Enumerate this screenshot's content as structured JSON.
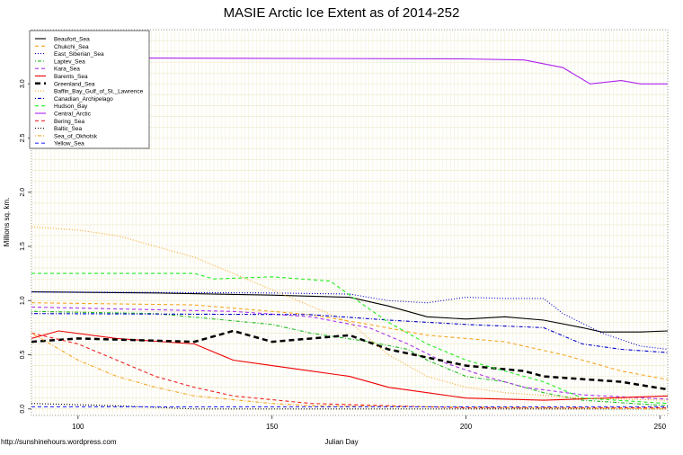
{
  "chart_data": {
    "type": "line",
    "title": "MASIE Arctic Ice Extent as of 2014-252",
    "xlabel": "Julian Day",
    "ylabel": "Millions sq. km.",
    "credit": "http://sunshinehours.wordpress.com",
    "xlim": [
      88,
      252
    ],
    "ylim": [
      -0.06,
      3.5
    ],
    "xticks": [
      100,
      150,
      200,
      250
    ],
    "yticks": [
      0.0,
      0.5,
      1.0,
      1.5,
      2.0,
      2.5,
      3.0
    ],
    "grid": true,
    "legend_position": "top-left",
    "series": [
      {
        "name": "Beaufort_Sea",
        "color": "#000000",
        "dash": "solid",
        "x": [
          88,
          120,
          150,
          170,
          180,
          190,
          200,
          210,
          220,
          230,
          235,
          245,
          252
        ],
        "y": [
          1.08,
          1.07,
          1.05,
          1.03,
          0.95,
          0.85,
          0.83,
          0.85,
          0.82,
          0.75,
          0.71,
          0.71,
          0.72
        ]
      },
      {
        "name": "Chukchi_Sea",
        "color": "#f5a623",
        "dash": "dashed",
        "x": [
          88,
          130,
          160,
          175,
          190,
          200,
          210,
          225,
          240,
          252
        ],
        "y": [
          0.98,
          0.96,
          0.87,
          0.78,
          0.68,
          0.65,
          0.62,
          0.5,
          0.35,
          0.27
        ]
      },
      {
        "name": "East_Siberian_Sea",
        "color": "#0000cc",
        "dash": "dotted",
        "x": [
          88,
          150,
          170,
          180,
          190,
          200,
          210,
          220,
          225,
          235,
          245,
          252
        ],
        "y": [
          1.08,
          1.07,
          1.06,
          1.0,
          0.98,
          1.03,
          1.02,
          1.02,
          0.88,
          0.7,
          0.58,
          0.55
        ]
      },
      {
        "name": "Laptev_Sea",
        "color": "#22bb22",
        "dash": "dotdash",
        "x": [
          88,
          120,
          150,
          160,
          175,
          185,
          190,
          200,
          210,
          220,
          230,
          252
        ],
        "y": [
          0.9,
          0.88,
          0.78,
          0.7,
          0.62,
          0.55,
          0.45,
          0.3,
          0.25,
          0.15,
          0.08,
          0.03
        ]
      },
      {
        "name": "Kara_Sea",
        "color": "#aa33ee",
        "dash": "dashed",
        "x": [
          88,
          140,
          160,
          175,
          185,
          195,
          205,
          215,
          230,
          252
        ],
        "y": [
          0.94,
          0.9,
          0.85,
          0.75,
          0.6,
          0.42,
          0.3,
          0.2,
          0.13,
          0.09
        ]
      },
      {
        "name": "Barents_Sea",
        "color": "#ee0000",
        "dash": "solid",
        "x": [
          88,
          95,
          110,
          130,
          140,
          150,
          160,
          170,
          180,
          190,
          200,
          220,
          252
        ],
        "y": [
          0.65,
          0.72,
          0.65,
          0.6,
          0.45,
          0.4,
          0.35,
          0.3,
          0.2,
          0.15,
          0.1,
          0.08,
          0.12
        ]
      },
      {
        "name": "Greenland_Sea",
        "color": "#000000",
        "dash": "thickdash",
        "x": [
          88,
          100,
          130,
          140,
          150,
          170,
          180,
          200,
          215,
          220,
          240,
          252
        ],
        "y": [
          0.62,
          0.65,
          0.62,
          0.72,
          0.62,
          0.68,
          0.55,
          0.4,
          0.35,
          0.3,
          0.25,
          0.18
        ]
      },
      {
        "name": "Baffin_Bay_Gulf_of_St._Lawrence",
        "color": "#f5a623",
        "dash": "dotted",
        "x": [
          88,
          100,
          110,
          120,
          130,
          140,
          150,
          160,
          170,
          180,
          190,
          200,
          210,
          230,
          252
        ],
        "y": [
          1.68,
          1.65,
          1.6,
          1.5,
          1.4,
          1.25,
          1.1,
          0.95,
          0.8,
          0.5,
          0.3,
          0.2,
          0.15,
          0.1,
          0.08
        ]
      },
      {
        "name": "Canadian_Archipelago",
        "color": "#0000cc",
        "dash": "dotdash",
        "x": [
          88,
          160,
          180,
          200,
          220,
          230,
          240,
          252
        ],
        "y": [
          0.88,
          0.87,
          0.82,
          0.78,
          0.75,
          0.6,
          0.55,
          0.52
        ]
      },
      {
        "name": "Hudson_Bay",
        "color": "#22ee22",
        "dash": "dashed",
        "x": [
          88,
          130,
          135,
          150,
          165,
          172,
          180,
          190,
          200,
          210,
          220,
          230,
          252
        ],
        "y": [
          1.25,
          1.25,
          1.2,
          1.22,
          1.18,
          1.0,
          0.8,
          0.6,
          0.45,
          0.35,
          0.25,
          0.1,
          0.05
        ]
      },
      {
        "name": "Central_Arctic",
        "color": "#aa22ee",
        "dash": "solid",
        "x": [
          88,
          100,
          200,
          215,
          225,
          232,
          240,
          245,
          252
        ],
        "y": [
          3.22,
          3.24,
          3.23,
          3.22,
          3.15,
          3.0,
          3.03,
          3.0,
          3.0
        ]
      },
      {
        "name": "Bering_Sea",
        "color": "#ee2222",
        "dash": "dashed",
        "x": [
          88,
          100,
          110,
          120,
          130,
          140,
          160,
          180,
          200,
          252
        ],
        "y": [
          0.7,
          0.6,
          0.45,
          0.3,
          0.2,
          0.12,
          0.05,
          0.03,
          0.01,
          0.01
        ]
      },
      {
        "name": "Baltic_Sea",
        "color": "#000000",
        "dash": "dotted",
        "x": [
          88,
          110,
          130,
          252
        ],
        "y": [
          0.05,
          0.03,
          0.0,
          0.0
        ]
      },
      {
        "name": "Sea_of_Okhotsk",
        "color": "#f5a623",
        "dash": "dotdash",
        "x": [
          88,
          100,
          110,
          120,
          130,
          150,
          160,
          252
        ],
        "y": [
          0.7,
          0.45,
          0.3,
          0.2,
          0.12,
          0.05,
          0.03,
          0.0
        ]
      },
      {
        "name": "Yellow_Sea",
        "color": "#3333ff",
        "dash": "dashed",
        "x": [
          88,
          252
        ],
        "y": [
          0.02,
          0.02
        ]
      }
    ]
  }
}
